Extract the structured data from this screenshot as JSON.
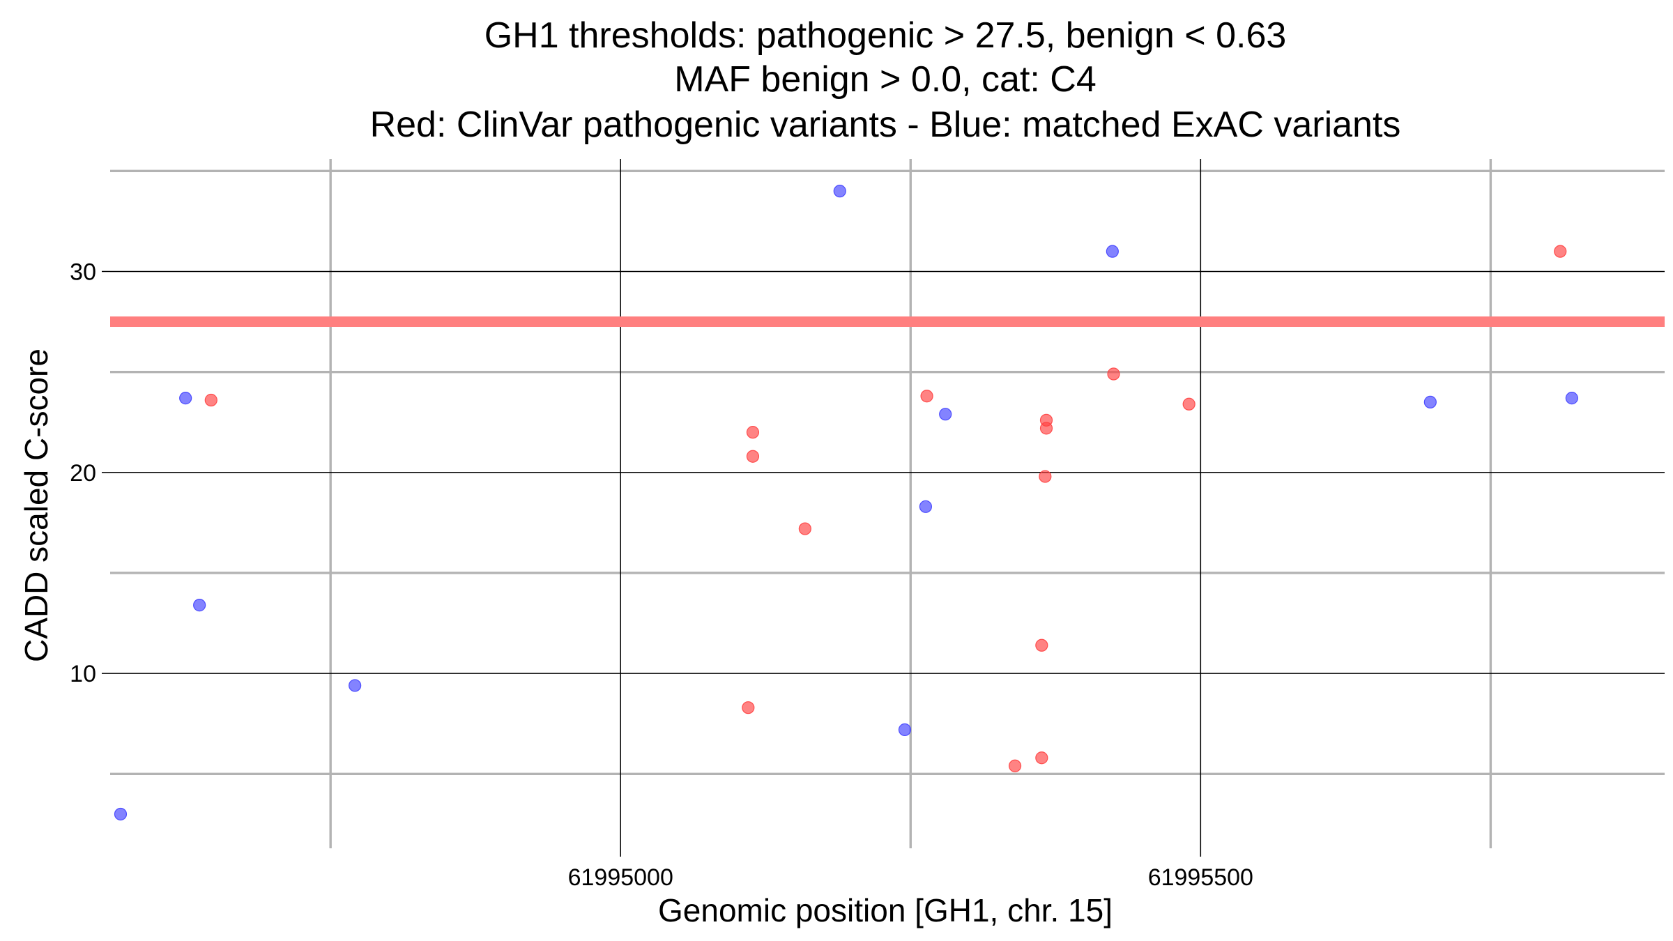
{
  "chart_data": {
    "type": "scatter",
    "title_lines": [
      "GH1 thresholds: pathogenic > 27.5, benign < 0.63",
      "MAF benign > 0.0, cat: C4",
      "Red: ClinVar pathogenic variants - Blue: matched ExAC variants"
    ],
    "xlabel": "Genomic position [GH1, chr. 15]",
    "ylabel": "CADD scaled C-score",
    "xlim": [
      61994560,
      61995900
    ],
    "ylim": [
      1.3,
      35.6
    ],
    "x_ticks": [
      61995000,
      61995500
    ],
    "x_tick_labels": [
      "61995000",
      "61995500"
    ],
    "x_minor_gridlines": [
      61994750,
      61995250,
      61995750
    ],
    "y_ticks": [
      10,
      20,
      30
    ],
    "y_tick_labels": [
      "10",
      "20",
      "30"
    ],
    "y_minor_gridlines": [
      5,
      15,
      25,
      35
    ],
    "threshold_line": {
      "y": 27.5,
      "color": "#ff7f7f"
    },
    "grid": true,
    "colors": {
      "pathogenic": "#ff4040",
      "matched": "#4040ff",
      "major_grid": "#000000",
      "minor_grid": "#b3b3b3"
    },
    "series": [
      {
        "key": "pathogenic",
        "points": [
          {
            "x": 61994647,
            "y": 23.6
          },
          {
            "x": 61995114,
            "y": 22.0
          },
          {
            "x": 61995114,
            "y": 20.8
          },
          {
            "x": 61995159,
            "y": 17.2
          },
          {
            "x": 61995110,
            "y": 8.3
          },
          {
            "x": 61995264,
            "y": 23.8
          },
          {
            "x": 61995367,
            "y": 22.6
          },
          {
            "x": 61995367,
            "y": 22.2
          },
          {
            "x": 61995366,
            "y": 19.8
          },
          {
            "x": 61995363,
            "y": 11.4
          },
          {
            "x": 61995363,
            "y": 5.8
          },
          {
            "x": 61995340,
            "y": 5.4
          },
          {
            "x": 61995425,
            "y": 24.9
          },
          {
            "x": 61995490,
            "y": 23.4
          },
          {
            "x": 61995810,
            "y": 31.0
          }
        ]
      },
      {
        "key": "matched",
        "points": [
          {
            "x": 61994625,
            "y": 23.7
          },
          {
            "x": 61994637,
            "y": 13.4
          },
          {
            "x": 61994569,
            "y": 3.0
          },
          {
            "x": 61994771,
            "y": 9.4
          },
          {
            "x": 61995189,
            "y": 34.0
          },
          {
            "x": 61995245,
            "y": 7.2
          },
          {
            "x": 61995263,
            "y": 18.3
          },
          {
            "x": 61995280,
            "y": 22.9
          },
          {
            "x": 61995424,
            "y": 31.0
          },
          {
            "x": 61995698,
            "y": 23.5
          },
          {
            "x": 61995820,
            "y": 23.7
          }
        ]
      }
    ]
  }
}
